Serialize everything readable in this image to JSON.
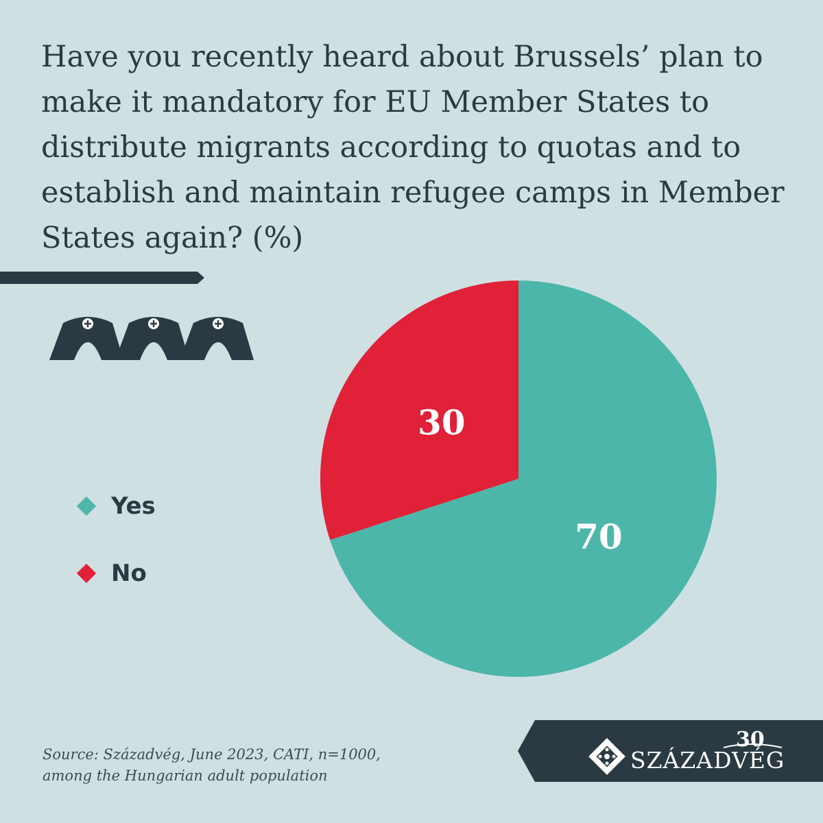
{
  "chart_data": {
    "type": "pie",
    "title": "Have you recently heard about Brussels’ plan to make it mandatory for EU Member States to distribute migrants according to quotas and to establish and maintain refugee camps in Member States again? (%)",
    "slices": [
      {
        "label": "Yes",
        "value": 70,
        "color": "#4db6aa"
      },
      {
        "label": "No",
        "value": 30,
        "color": "#e02138"
      }
    ],
    "legend_position": "left"
  },
  "source": {
    "line1": "Source: Századvég, June 2023, CATI, n=1000,",
    "line2": "among the Hungarian adult population"
  },
  "logo": {
    "name": "SZÁZADVÉG",
    "badge": "30"
  },
  "colors": {
    "background": "#cfe0e3",
    "dark": "#2b3a42"
  },
  "icons": [
    "refugee-tent-icon",
    "refugee-tent-icon",
    "refugee-tent-icon",
    "logo-emblem-icon"
  ]
}
